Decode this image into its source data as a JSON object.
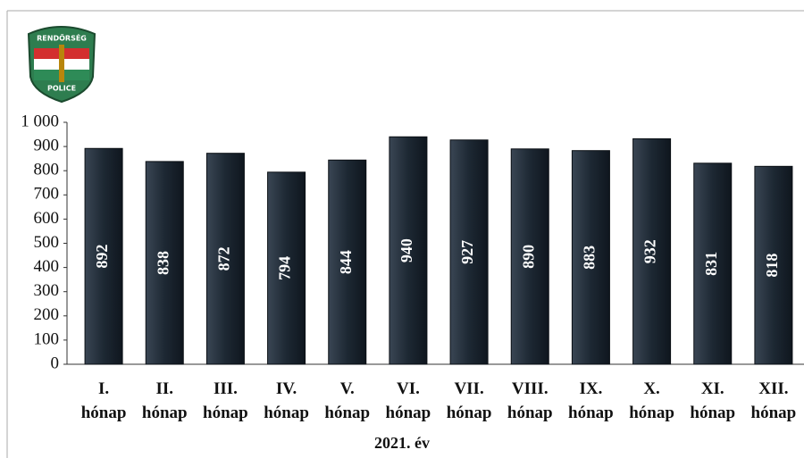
{
  "logo": {
    "top": "RENDŐRSÉG",
    "bottom": "POLICE"
  },
  "chart_data": {
    "type": "bar",
    "categories": [
      "I. hónap",
      "II. hónap",
      "III. hónap",
      "IV. hónap",
      "V. hónap",
      "VI. hónap",
      "VII. hónap",
      "VIII. hónap",
      "IX. hónap",
      "X. hónap",
      "XI. hónap",
      "XII. hónap"
    ],
    "values": [
      892,
      838,
      872,
      794,
      844,
      940,
      927,
      890,
      883,
      932,
      831,
      818
    ],
    "color": "#1d2833",
    "xlabel": "2021. év",
    "ylim": [
      0,
      1000
    ],
    "yticks": [
      0,
      100,
      200,
      300,
      400,
      500,
      600,
      700,
      800,
      900,
      {
        "value": 1000,
        "label": "1 000"
      }
    ],
    "grid": false
  }
}
